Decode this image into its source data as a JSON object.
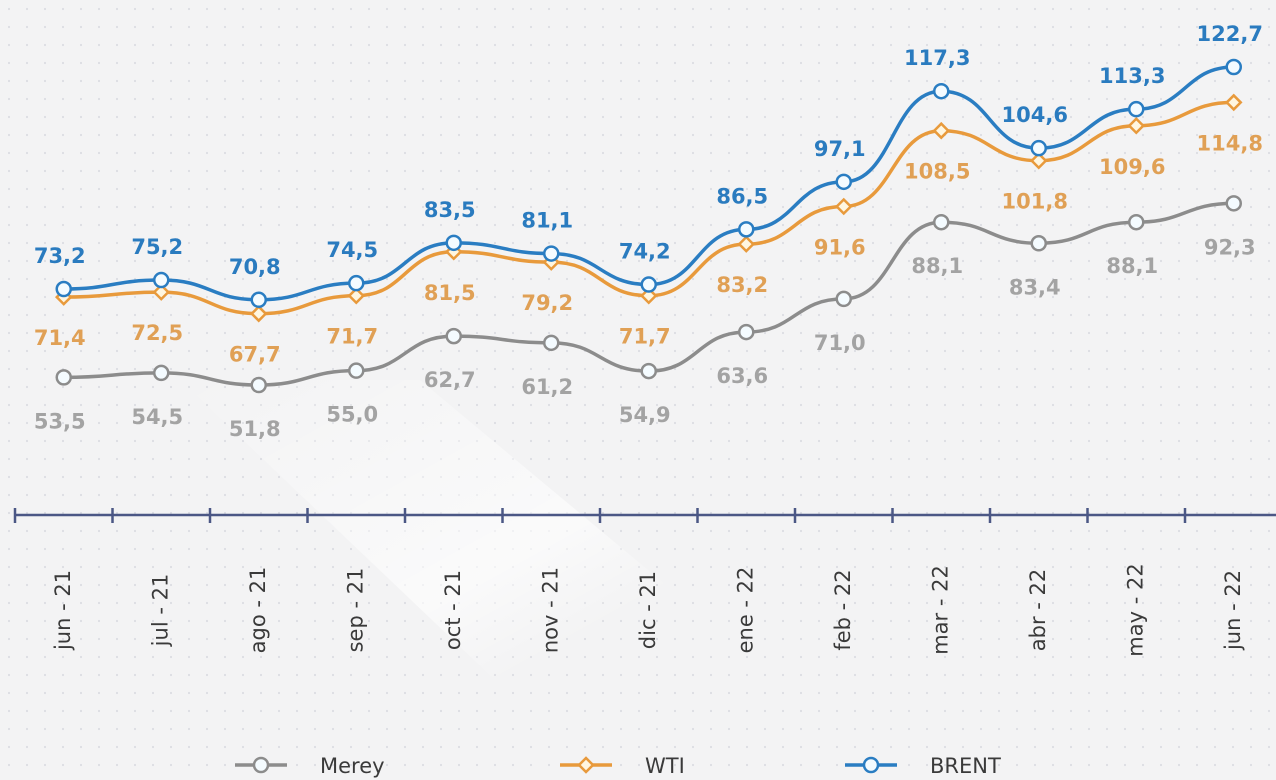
{
  "chart_data": {
    "type": "line",
    "categories": [
      "jun - 21",
      "jul - 21",
      "ago - 21",
      "sep - 21",
      "oct - 21",
      "nov - 21",
      "dic - 21",
      "ene - 22",
      "feb - 22",
      "mar - 22",
      "abr - 22",
      "may - 22",
      "jun - 22"
    ],
    "series": [
      {
        "name": "Merey",
        "color": "#8c8c8c",
        "marker": "circle",
        "label_color": "#a3a3a3",
        "values": [
          53.5,
          54.5,
          51.8,
          55.0,
          62.7,
          61.2,
          54.9,
          63.6,
          71.0,
          88.1,
          83.4,
          88.1,
          92.3
        ],
        "value_labels": [
          "53,5",
          "54,5",
          "51,8",
          "55,0",
          "62,7",
          "61,2",
          "54,9",
          "63,6",
          "71,0",
          "88,1",
          "83,4",
          "88,1",
          "92,3"
        ]
      },
      {
        "name": "WTI",
        "color": "#e89a3c",
        "marker": "diamond",
        "label_color": "#e0a055",
        "values": [
          71.4,
          72.5,
          67.7,
          71.7,
          81.5,
          79.2,
          71.7,
          83.2,
          91.6,
          108.5,
          101.8,
          109.6,
          114.8
        ],
        "value_labels": [
          "71,4",
          "72,5",
          "67,7",
          "71,7",
          "81,5",
          "79,2",
          "71,7",
          "83,2",
          "91,6",
          "108,5",
          "101,8",
          "109,6",
          "114,8"
        ]
      },
      {
        "name": "BRENT",
        "color": "#2a7dc2",
        "marker": "circle",
        "label_color": "#2a7bbf",
        "values": [
          73.2,
          75.2,
          70.8,
          74.5,
          83.5,
          81.1,
          74.2,
          86.5,
          97.1,
          117.3,
          104.6,
          113.3,
          122.7
        ],
        "value_labels": [
          "73,2",
          "75,2",
          "70,8",
          "74,5",
          "83,5",
          "81,1",
          "74,2",
          "86,5",
          "97,1",
          "117,3",
          "104,6",
          "113,3",
          "122,7"
        ]
      }
    ]
  }
}
